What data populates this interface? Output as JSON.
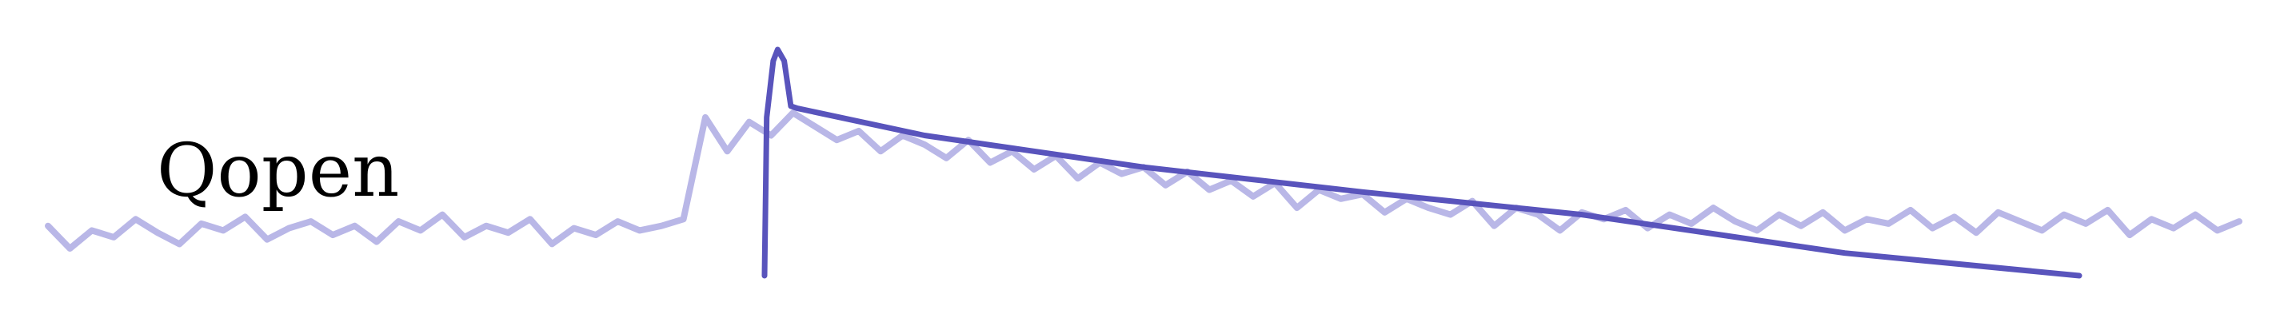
{
  "chart_data": {
    "type": "line",
    "title": "",
    "xlabel": "",
    "ylabel": "",
    "axes_visible": false,
    "grid": false,
    "annotation": "Qopen",
    "xlim": [
      0,
      100
    ],
    "ylim": [
      0,
      1
    ],
    "colors": {
      "data": "#b9b7e7",
      "fit": "#5954bc"
    },
    "series": [
      {
        "role": "data",
        "x_step": 1,
        "values": [
          0.22,
          0.12,
          0.2,
          0.17,
          0.25,
          0.19,
          0.14,
          0.23,
          0.2,
          0.26,
          0.16,
          0.21,
          0.24,
          0.18,
          0.22,
          0.15,
          0.24,
          0.2,
          0.27,
          0.17,
          0.22,
          0.19,
          0.25,
          0.14,
          0.21,
          0.18,
          0.24,
          0.2,
          0.22,
          0.25,
          0.7,
          0.55,
          0.68,
          0.62,
          0.72,
          0.66,
          0.6,
          0.64,
          0.55,
          0.62,
          0.58,
          0.52,
          0.6,
          0.5,
          0.55,
          0.47,
          0.53,
          0.43,
          0.5,
          0.45,
          0.48,
          0.4,
          0.46,
          0.38,
          0.42,
          0.35,
          0.41,
          0.3,
          0.38,
          0.34,
          0.36,
          0.28,
          0.34,
          0.3,
          0.27,
          0.33,
          0.22,
          0.3,
          0.27,
          0.2,
          0.28,
          0.25,
          0.29,
          0.21,
          0.27,
          0.23,
          0.3,
          0.24,
          0.2,
          0.27,
          0.22,
          0.28,
          0.2,
          0.25,
          0.23,
          0.29,
          0.21,
          0.26,
          0.19,
          0.28,
          0.24,
          0.2,
          0.27,
          0.23,
          0.29,
          0.18,
          0.25,
          0.21,
          0.27,
          0.2,
          0.24
        ]
      },
      {
        "role": "fit",
        "points": [
          [
            32.7,
            0
          ],
          [
            32.8,
            0.7
          ],
          [
            33.1,
            0.95
          ],
          [
            33.3,
            1.0
          ],
          [
            33.6,
            0.95
          ],
          [
            33.9,
            0.75
          ],
          [
            34.2,
            0.74
          ],
          [
            40,
            0.62
          ],
          [
            50,
            0.48
          ],
          [
            60,
            0.37
          ],
          [
            70,
            0.27
          ],
          [
            82,
            0.1
          ],
          [
            92.7,
            0
          ]
        ]
      }
    ]
  }
}
